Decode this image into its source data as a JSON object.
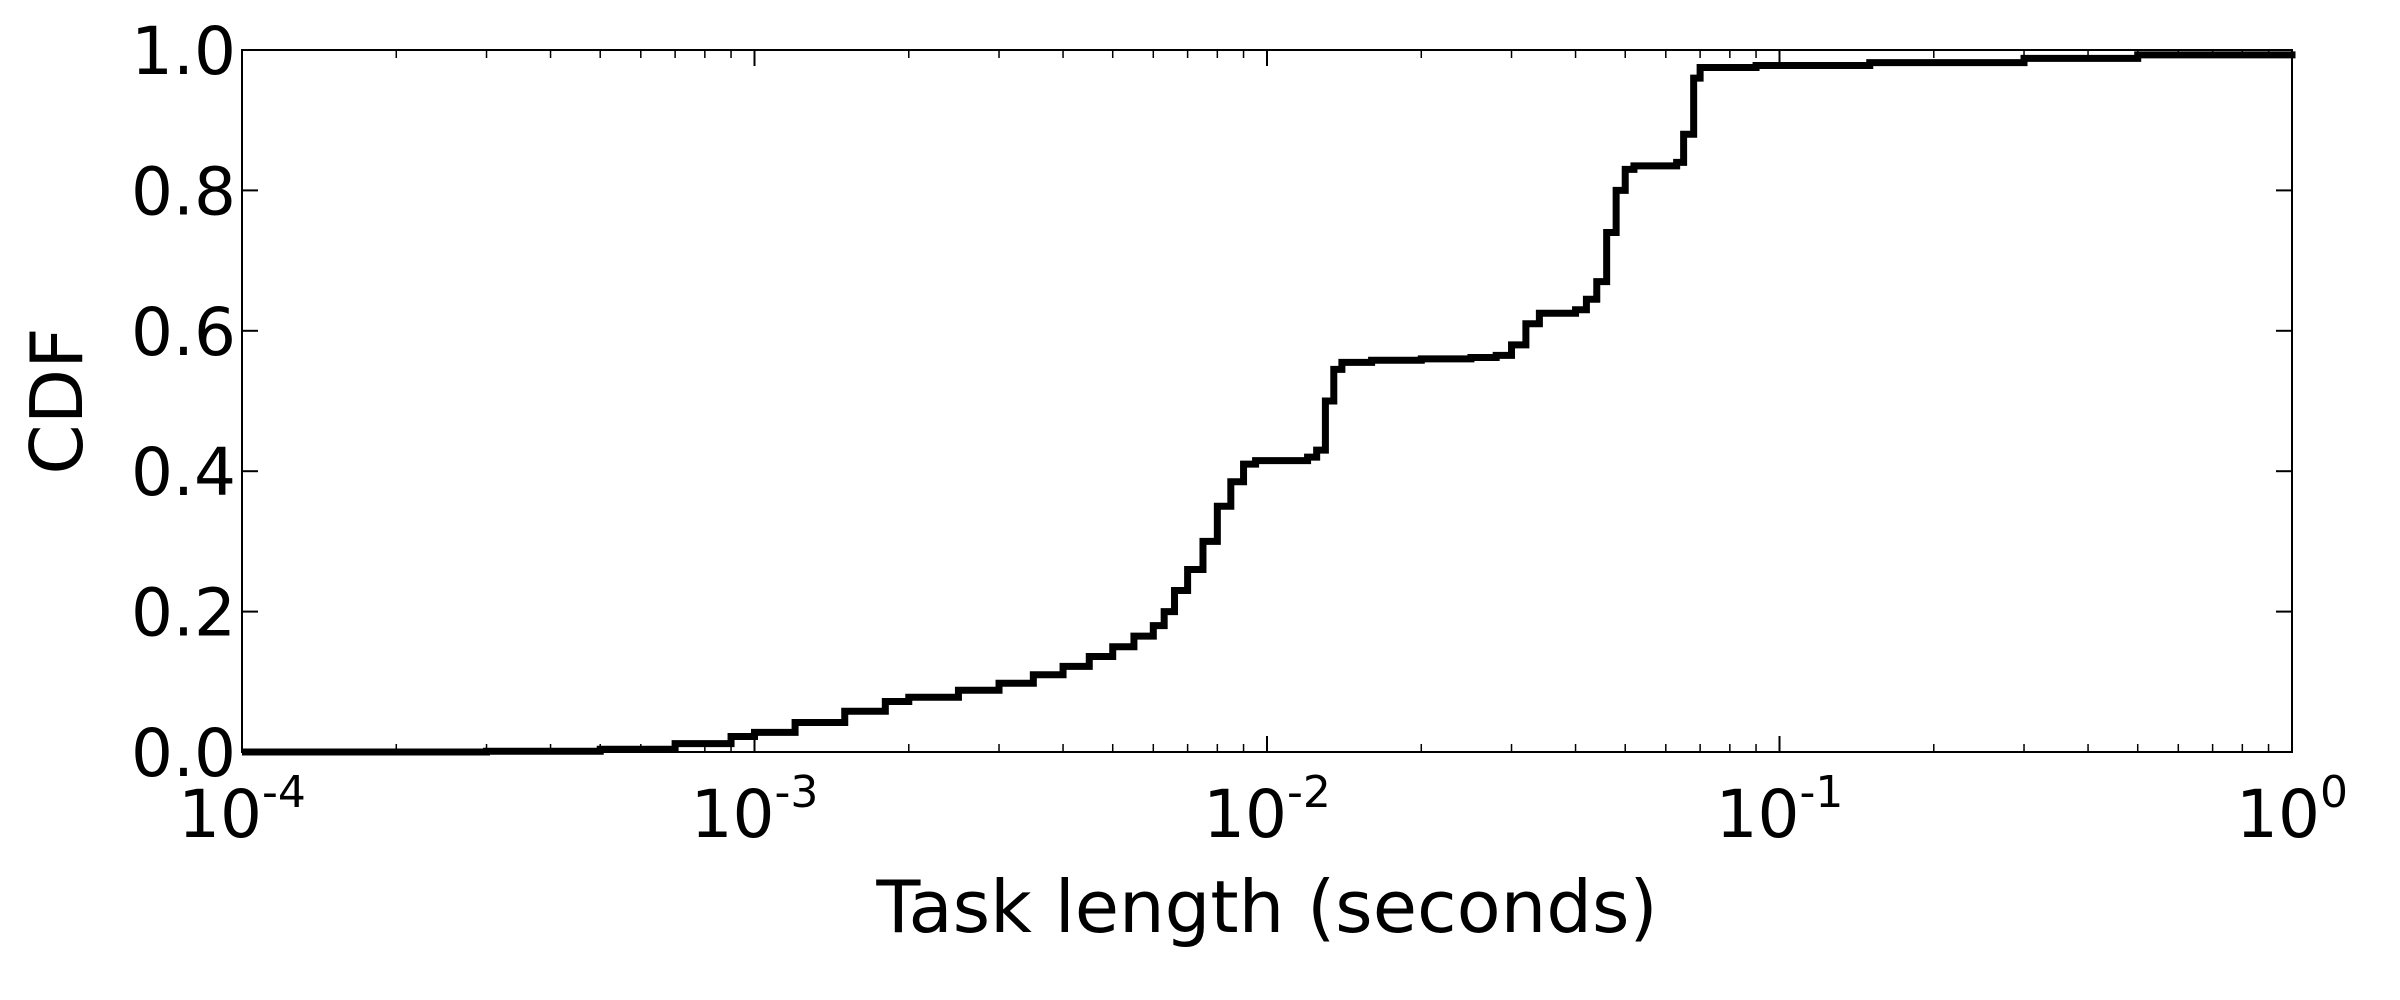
{
  "chart_data": {
    "type": "line",
    "title": "",
    "xlabel": "Task length (seconds)",
    "ylabel": "CDF",
    "x_scale": "log",
    "xlim": [
      0.0001,
      1
    ],
    "ylim": [
      0.0,
      1.0
    ],
    "x_ticks": [
      {
        "value": 0.0001,
        "base": "10",
        "exp": "-4"
      },
      {
        "value": 0.001,
        "base": "10",
        "exp": "-3"
      },
      {
        "value": 0.01,
        "base": "10",
        "exp": "-2"
      },
      {
        "value": 0.1,
        "base": "10",
        "exp": "-1"
      },
      {
        "value": 1,
        "base": "10",
        "exp": "0"
      }
    ],
    "y_ticks": [
      {
        "value": 0.0,
        "label": "0.0"
      },
      {
        "value": 0.2,
        "label": "0.2"
      },
      {
        "value": 0.4,
        "label": "0.4"
      },
      {
        "value": 0.6,
        "label": "0.6"
      },
      {
        "value": 0.8,
        "label": "0.8"
      },
      {
        "value": 1.0,
        "label": "1.0"
      }
    ],
    "grid": false,
    "legend": "none",
    "series": [
      {
        "color": "#000000",
        "step": true,
        "points": [
          [
            0.0001,
            0.0
          ],
          [
            0.0003,
            0.001
          ],
          [
            0.0005,
            0.004
          ],
          [
            0.0007,
            0.012
          ],
          [
            0.0009,
            0.022
          ],
          [
            0.001,
            0.028
          ],
          [
            0.0012,
            0.042
          ],
          [
            0.0015,
            0.058
          ],
          [
            0.0018,
            0.072
          ],
          [
            0.002,
            0.078
          ],
          [
            0.0025,
            0.088
          ],
          [
            0.003,
            0.098
          ],
          [
            0.0035,
            0.11
          ],
          [
            0.004,
            0.122
          ],
          [
            0.0045,
            0.136
          ],
          [
            0.005,
            0.15
          ],
          [
            0.0055,
            0.165
          ],
          [
            0.006,
            0.18
          ],
          [
            0.0063,
            0.2
          ],
          [
            0.0066,
            0.23
          ],
          [
            0.007,
            0.26
          ],
          [
            0.0075,
            0.3
          ],
          [
            0.008,
            0.35
          ],
          [
            0.0085,
            0.385
          ],
          [
            0.009,
            0.41
          ],
          [
            0.0095,
            0.415
          ],
          [
            0.012,
            0.42
          ],
          [
            0.0125,
            0.43
          ],
          [
            0.013,
            0.5
          ],
          [
            0.0135,
            0.545
          ],
          [
            0.014,
            0.555
          ],
          [
            0.016,
            0.558
          ],
          [
            0.02,
            0.56
          ],
          [
            0.025,
            0.562
          ],
          [
            0.028,
            0.565
          ],
          [
            0.03,
            0.58
          ],
          [
            0.032,
            0.61
          ],
          [
            0.034,
            0.625
          ],
          [
            0.04,
            0.63
          ],
          [
            0.042,
            0.645
          ],
          [
            0.044,
            0.67
          ],
          [
            0.046,
            0.74
          ],
          [
            0.048,
            0.8
          ],
          [
            0.05,
            0.83
          ],
          [
            0.052,
            0.835
          ],
          [
            0.063,
            0.84
          ],
          [
            0.065,
            0.88
          ],
          [
            0.068,
            0.96
          ],
          [
            0.07,
            0.975
          ],
          [
            0.09,
            0.978
          ],
          [
            0.15,
            0.982
          ],
          [
            0.3,
            0.988
          ],
          [
            0.5,
            0.993
          ],
          [
            1.0,
            0.998
          ]
        ]
      }
    ]
  }
}
